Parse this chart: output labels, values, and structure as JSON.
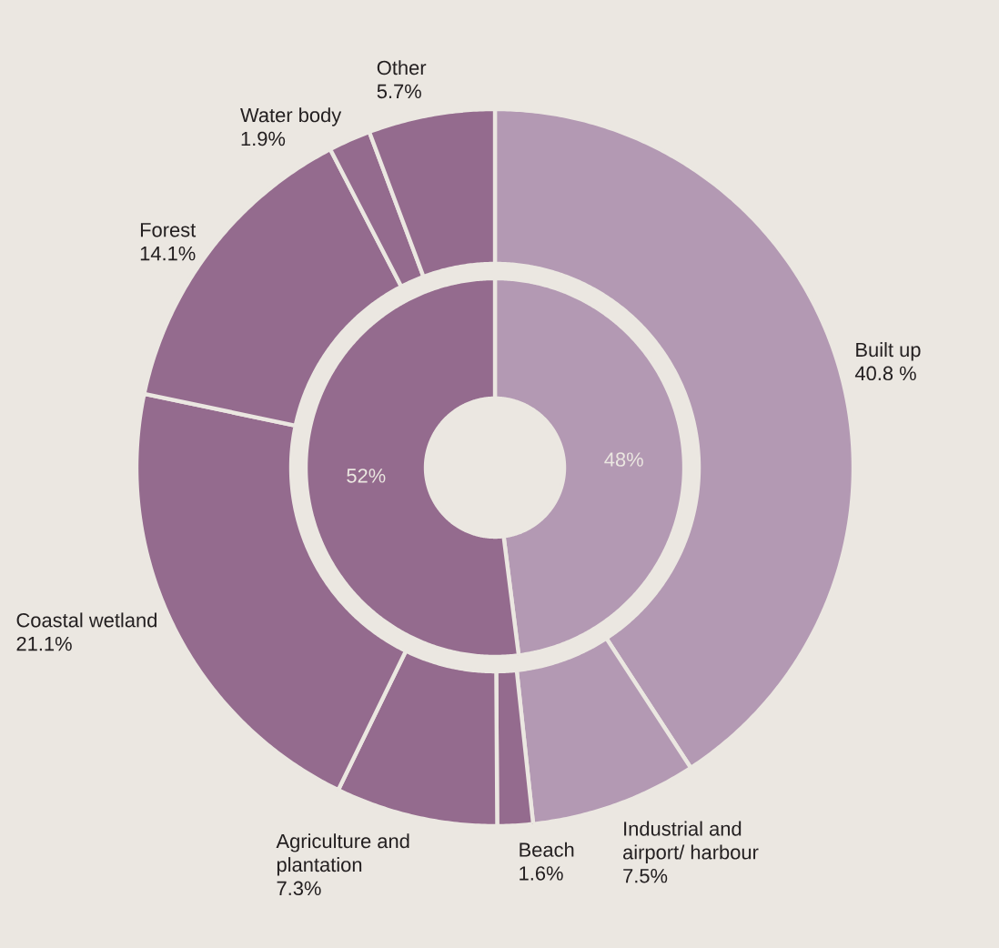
{
  "chart_data": [
    {
      "type": "donut",
      "categories": [
        "Built up",
        "Industrial and airport/ harbour",
        "Beach",
        "Agriculture and plantation",
        "Coastal wetland",
        "Forest",
        "Water body",
        "Other"
      ],
      "values": [
        40.8,
        7.5,
        1.6,
        7.3,
        21.1,
        14.1,
        1.9,
        5.7
      ],
      "colors": [
        "#b399b3",
        "#b399b3",
        "#946b8e",
        "#946b8e",
        "#946b8e",
        "#946b8e",
        "#946b8e",
        "#946b8e"
      ],
      "value_labels": [
        "40.8 %",
        "7.5%",
        "1.6%",
        "7.3%",
        "21.1%",
        "14.1%",
        "1.9%",
        "5.7%"
      ]
    },
    {
      "type": "donut",
      "categories": [
        null,
        null
      ],
      "values": [
        48,
        52
      ],
      "colors": [
        "#b399b3",
        "#946b8e"
      ],
      "value_labels": [
        "48%",
        "52%"
      ]
    }
  ]
}
